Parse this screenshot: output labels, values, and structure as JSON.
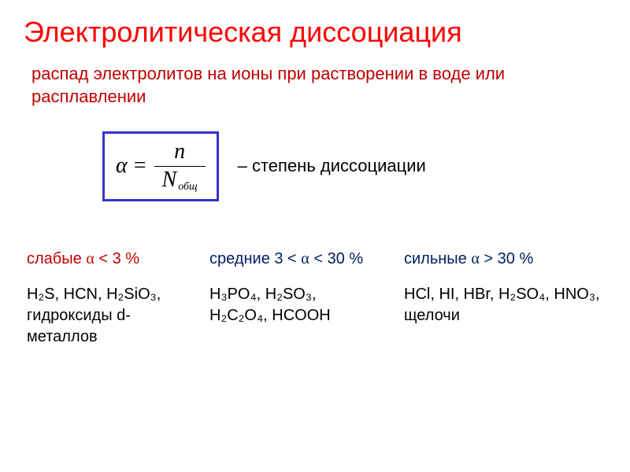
{
  "colors": {
    "title": "#ff0000",
    "definition": "#c00000",
    "formula_border": "#3333cc",
    "text": "#000000",
    "weak": "#c00000",
    "medium": "#002060",
    "strong": "#002060"
  },
  "title": "Электролитическая диссоциация",
  "definition": "распад электролитов на ионы при растворении в воде или расплавлении",
  "formula": {
    "lhs": "α",
    "eq": "=",
    "numerator": "n",
    "denom_var": "N",
    "denom_sub": "общ",
    "label": "– степень диссоциации"
  },
  "categories": {
    "weak": {
      "heading_prefix": "слабые ",
      "alpha": "α",
      "heading_suffix": " < 3 %",
      "examples_line1": "H₂S, HCN, H₂SiO₃,",
      "examples_line2": "гидроксиды d-металлов"
    },
    "medium": {
      "heading_prefix": "средние 3 < ",
      "alpha": "α",
      "heading_suffix": " < 30 %",
      "examples_line1": " H₃PO₄, H₂SO₃,",
      "examples_line2": "H₂C₂O₄, HCOOH"
    },
    "strong": {
      "heading_prefix": "сильные ",
      "alpha": "α",
      "heading_suffix": " > 30 %",
      "examples_line1": "HCl, HI, HBr, H₂SO₄, HNO₃, щелочи",
      "examples_line2": ""
    }
  }
}
